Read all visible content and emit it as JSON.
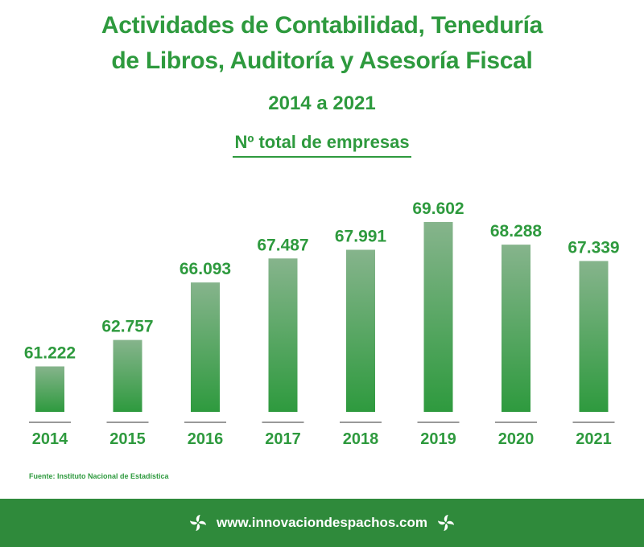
{
  "title_line1": "Actividades de Contabilidad, Teneduría",
  "title_line2": "de Libros, Auditoría y Asesoría Fiscal",
  "period": "2014 a 2021",
  "measure": "Nº total de empresas",
  "source": "Fuente: Instituto Nacional de Estadística",
  "footer_url": "www.innovaciondespachos.com",
  "logo_icon": "pinwheel-logo-icon",
  "colors": {
    "accent": "#2e9a3e",
    "bar_top": "#86b48c",
    "bar_bottom": "#2e9a3e",
    "footer_bg": "#2f8a3b"
  },
  "chart_data": {
    "type": "bar",
    "categories": [
      "2014",
      "2015",
      "2016",
      "2017",
      "2018",
      "2019",
      "2020",
      "2021"
    ],
    "values": [
      61222,
      62757,
      66093,
      67487,
      67991,
      69602,
      68288,
      67339
    ],
    "value_labels": [
      "61.222",
      "62.757",
      "66.093",
      "67.487",
      "67.991",
      "69.602",
      "68.288",
      "67.339"
    ],
    "title": "Nº total de empresas",
    "xlabel": "",
    "ylabel": "",
    "grid": false,
    "legend": "none"
  }
}
